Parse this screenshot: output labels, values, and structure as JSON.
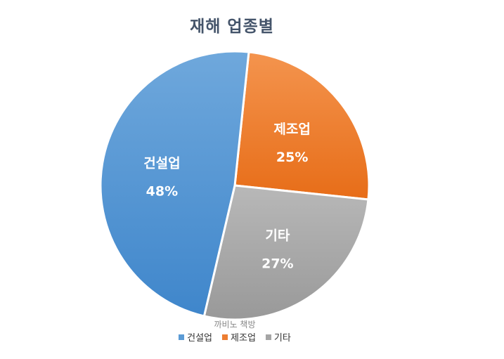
{
  "chart_data": {
    "type": "pie",
    "title": "재해 업종별",
    "categories": [
      "건설업",
      "제조업",
      "기타"
    ],
    "values": [
      48,
      25,
      27
    ],
    "value_labels": [
      "48%",
      "25%",
      "27%"
    ],
    "colors": [
      "#5b9bd5",
      "#ed7d31",
      "#a5a5a5"
    ],
    "legend": {
      "position": "bottom",
      "entries": [
        "건설업",
        "제조업",
        "기타"
      ]
    }
  },
  "watermark": "까비노 책방"
}
